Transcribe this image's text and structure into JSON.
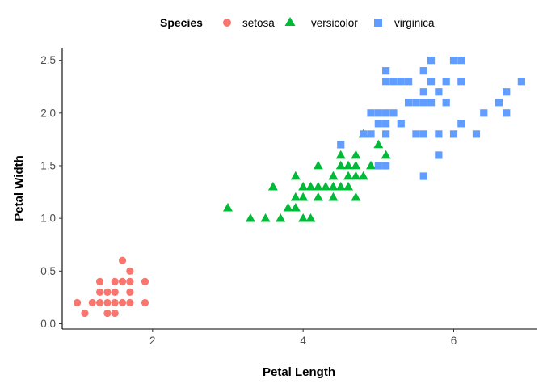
{
  "chart_data": {
    "type": "scatter",
    "title": "",
    "xlabel": "Petal Length",
    "ylabel": "Petal Width",
    "xlim": [
      0.8,
      7.1
    ],
    "ylim": [
      -0.05,
      2.62
    ],
    "x_ticks": [
      2,
      4,
      6
    ],
    "y_ticks": [
      0.0,
      0.5,
      1.0,
      1.5,
      2.0,
      2.5
    ],
    "y_tick_labels": [
      "0.0",
      "0.5",
      "1.0",
      "1.5",
      "2.0",
      "2.5"
    ],
    "grid": false,
    "legend": {
      "title": "Species",
      "position": "top"
    },
    "series": [
      {
        "name": "setosa",
        "shape": "circle",
        "color": "#F8766D",
        "points": [
          [
            1.0,
            0.2
          ],
          [
            1.1,
            0.1
          ],
          [
            1.2,
            0.2
          ],
          [
            1.3,
            0.2
          ],
          [
            1.3,
            0.3
          ],
          [
            1.3,
            0.4
          ],
          [
            1.4,
            0.1
          ],
          [
            1.4,
            0.2
          ],
          [
            1.4,
            0.3
          ],
          [
            1.5,
            0.1
          ],
          [
            1.5,
            0.2
          ],
          [
            1.5,
            0.3
          ],
          [
            1.5,
            0.4
          ],
          [
            1.6,
            0.2
          ],
          [
            1.6,
            0.4
          ],
          [
            1.6,
            0.6
          ],
          [
            1.7,
            0.2
          ],
          [
            1.7,
            0.3
          ],
          [
            1.7,
            0.4
          ],
          [
            1.7,
            0.5
          ],
          [
            1.9,
            0.2
          ],
          [
            1.9,
            0.4
          ]
        ]
      },
      {
        "name": "versicolor",
        "shape": "triangle",
        "color": "#00BA38",
        "points": [
          [
            3.0,
            1.1
          ],
          [
            3.3,
            1.0
          ],
          [
            3.5,
            1.0
          ],
          [
            3.6,
            1.3
          ],
          [
            3.7,
            1.0
          ],
          [
            3.8,
            1.1
          ],
          [
            3.9,
            1.1
          ],
          [
            3.9,
            1.2
          ],
          [
            3.9,
            1.4
          ],
          [
            4.0,
            1.0
          ],
          [
            4.0,
            1.2
          ],
          [
            4.0,
            1.3
          ],
          [
            4.1,
            1.0
          ],
          [
            4.1,
            1.3
          ],
          [
            4.2,
            1.2
          ],
          [
            4.2,
            1.3
          ],
          [
            4.2,
            1.5
          ],
          [
            4.3,
            1.3
          ],
          [
            4.4,
            1.2
          ],
          [
            4.4,
            1.3
          ],
          [
            4.4,
            1.4
          ],
          [
            4.5,
            1.3
          ],
          [
            4.5,
            1.5
          ],
          [
            4.5,
            1.6
          ],
          [
            4.6,
            1.3
          ],
          [
            4.6,
            1.4
          ],
          [
            4.6,
            1.5
          ],
          [
            4.7,
            1.2
          ],
          [
            4.7,
            1.4
          ],
          [
            4.7,
            1.5
          ],
          [
            4.7,
            1.6
          ],
          [
            4.8,
            1.4
          ],
          [
            4.8,
            1.8
          ],
          [
            4.9,
            1.5
          ],
          [
            5.0,
            1.7
          ],
          [
            5.1,
            1.6
          ]
        ]
      },
      {
        "name": "virginica",
        "shape": "square",
        "color": "#619CFF",
        "points": [
          [
            4.5,
            1.7
          ],
          [
            4.8,
            1.8
          ],
          [
            4.9,
            1.8
          ],
          [
            4.9,
            2.0
          ],
          [
            5.0,
            1.5
          ],
          [
            5.0,
            1.9
          ],
          [
            5.0,
            2.0
          ],
          [
            5.1,
            1.5
          ],
          [
            5.1,
            1.8
          ],
          [
            5.1,
            1.9
          ],
          [
            5.1,
            2.0
          ],
          [
            5.1,
            2.3
          ],
          [
            5.1,
            2.4
          ],
          [
            5.2,
            2.0
          ],
          [
            5.2,
            2.3
          ],
          [
            5.3,
            1.9
          ],
          [
            5.3,
            2.3
          ],
          [
            5.4,
            2.1
          ],
          [
            5.4,
            2.3
          ],
          [
            5.5,
            1.8
          ],
          [
            5.5,
            2.1
          ],
          [
            5.6,
            1.4
          ],
          [
            5.6,
            1.8
          ],
          [
            5.6,
            2.1
          ],
          [
            5.6,
            2.2
          ],
          [
            5.6,
            2.4
          ],
          [
            5.7,
            2.1
          ],
          [
            5.7,
            2.3
          ],
          [
            5.7,
            2.5
          ],
          [
            5.8,
            1.6
          ],
          [
            5.8,
            1.8
          ],
          [
            5.8,
            2.2
          ],
          [
            5.9,
            2.1
          ],
          [
            5.9,
            2.3
          ],
          [
            6.0,
            1.8
          ],
          [
            6.0,
            2.5
          ],
          [
            6.1,
            1.9
          ],
          [
            6.1,
            2.3
          ],
          [
            6.1,
            2.5
          ],
          [
            6.3,
            1.8
          ],
          [
            6.4,
            2.0
          ],
          [
            6.6,
            2.1
          ],
          [
            6.7,
            2.0
          ],
          [
            6.7,
            2.2
          ],
          [
            6.9,
            2.3
          ]
        ]
      }
    ]
  }
}
